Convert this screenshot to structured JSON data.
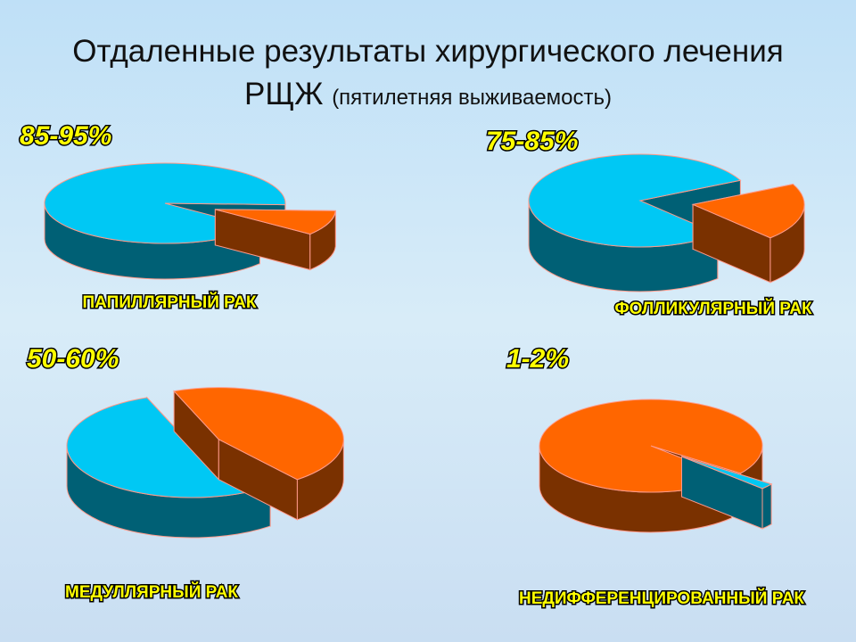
{
  "title": {
    "line1": "Отдаленные результаты хирургического лечения",
    "line2": "РЩЖ",
    "note": "(пятилетняя выживаемость)"
  },
  "chart_data": [
    {
      "type": "pie",
      "annotation": "85-95%",
      "caption": "ПАПИЛЛЯРНЫЙ РАК",
      "values": [
        90,
        10
      ],
      "colors": [
        "#00c8f4",
        "#ff6600"
      ]
    },
    {
      "type": "pie",
      "annotation": "75-85%",
      "caption": "ФОЛЛИКУЛЯРНЫЙ РАК",
      "values": [
        80,
        20
      ],
      "colors": [
        "#00c8f4",
        "#ff6600"
      ]
    },
    {
      "type": "pie",
      "annotation": "50-60%",
      "caption": "МЕДУЛЛЯРНЫЙ РАК",
      "values": [
        55,
        45
      ],
      "colors": [
        "#00c8f4",
        "#ff6600"
      ]
    },
    {
      "type": "pie",
      "annotation": "1-2%",
      "caption": "НЕДИФФЕРЕНЦИРОВАННЫЙ РАК",
      "values": [
        2,
        98
      ],
      "colors": [
        "#00c8f4",
        "#ff6600"
      ]
    }
  ]
}
